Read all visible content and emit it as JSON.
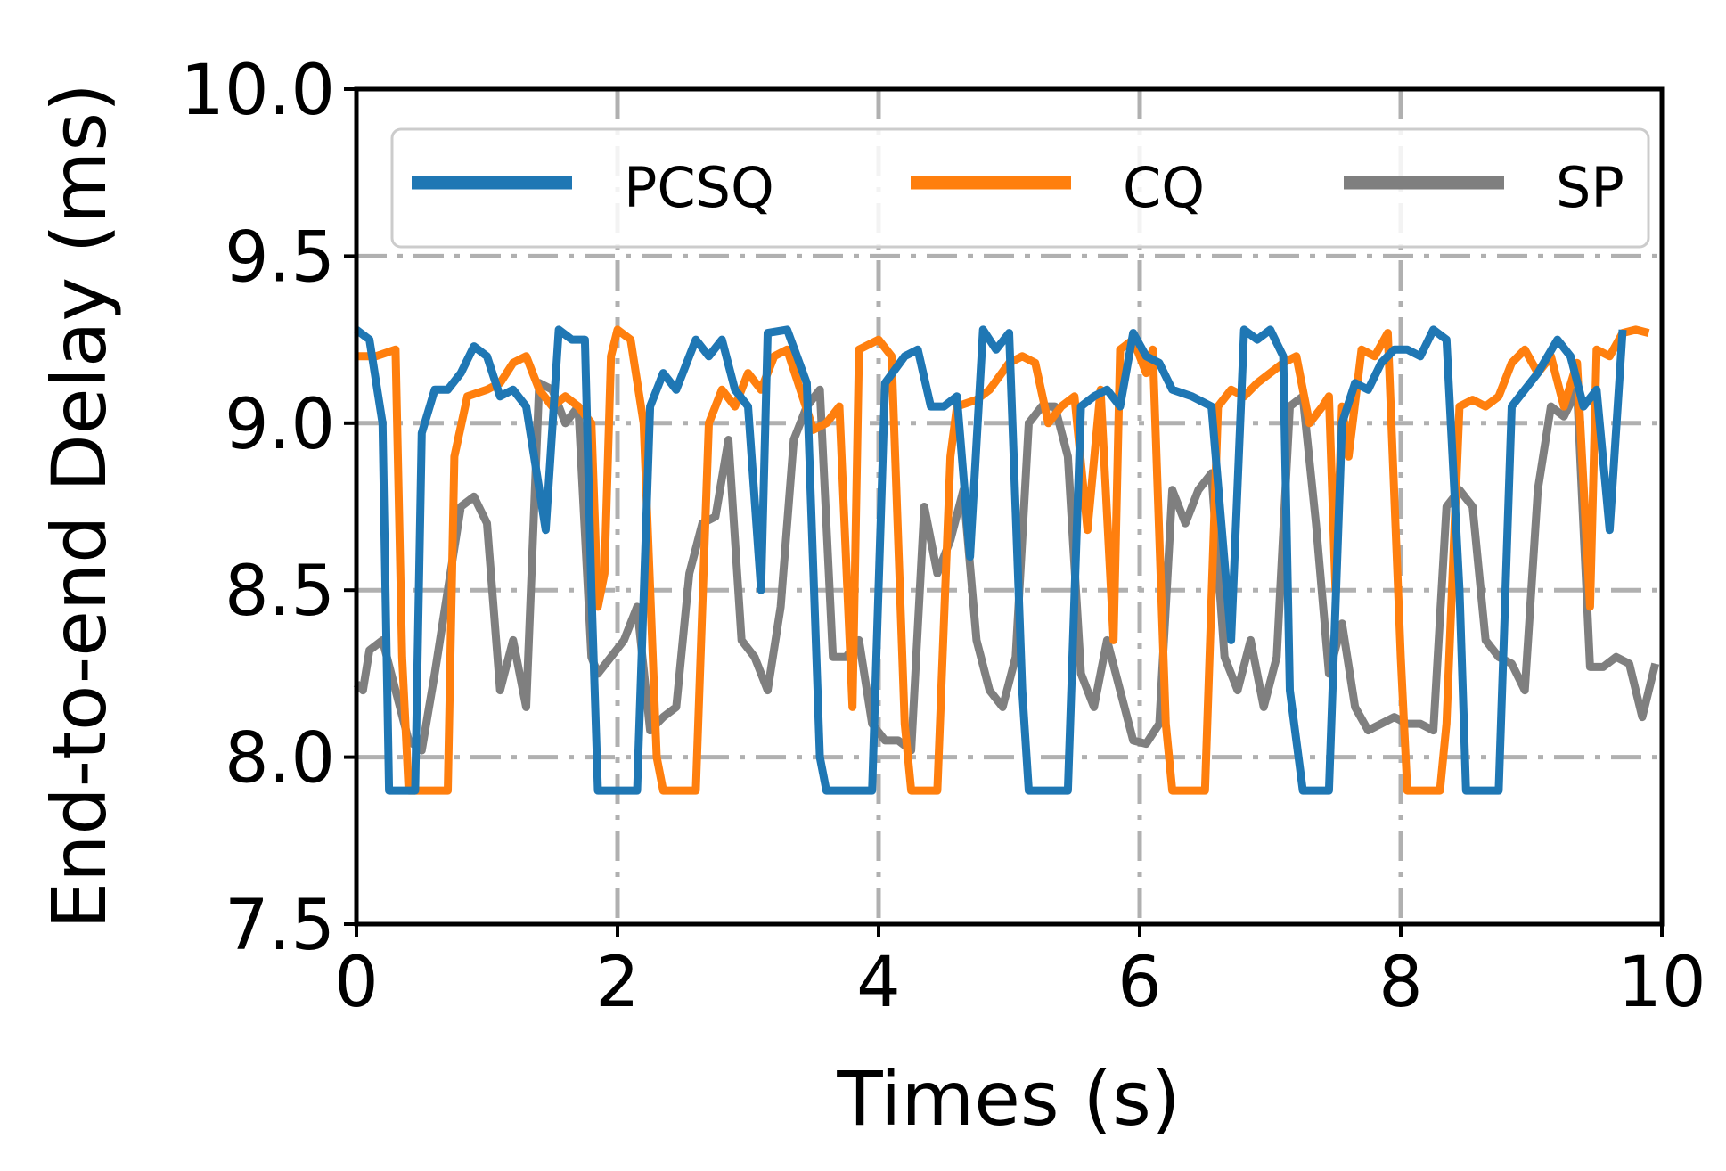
{
  "chart_data": {
    "type": "line",
    "title": "",
    "xlabel": "Times (s)",
    "ylabel": "End-to-end Delay (ms)",
    "xlim": [
      0,
      10
    ],
    "ylim": [
      7.5,
      10.0
    ],
    "xticks": [
      0,
      2,
      4,
      6,
      8,
      10
    ],
    "xtick_labels": [
      "0",
      "2",
      "4",
      "6",
      "8",
      "10"
    ],
    "yticks": [
      7.5,
      8.0,
      8.5,
      9.0,
      9.5,
      10.0
    ],
    "ytick_labels": [
      "7.5",
      "8.0",
      "8.5",
      "9.0",
      "9.5",
      "10.0"
    ],
    "grid": "on",
    "legend_position": "top",
    "series": [
      {
        "name": "PCSQ",
        "color": "#1f77b4",
        "points": [
          [
            0,
            9.28
          ],
          [
            0.1,
            9.25
          ],
          [
            0.2,
            9.0
          ],
          [
            0.25,
            7.9
          ],
          [
            0.45,
            7.9
          ],
          [
            0.5,
            8.97
          ],
          [
            0.6,
            9.1
          ],
          [
            0.7,
            9.1
          ],
          [
            0.8,
            9.15
          ],
          [
            0.9,
            9.23
          ],
          [
            1.0,
            9.2
          ],
          [
            1.1,
            9.08
          ],
          [
            1.2,
            9.1
          ],
          [
            1.3,
            9.05
          ],
          [
            1.45,
            8.68
          ],
          [
            1.55,
            9.28
          ],
          [
            1.65,
            9.25
          ],
          [
            1.75,
            9.25
          ],
          [
            1.8,
            8.5
          ],
          [
            1.85,
            7.9
          ],
          [
            2.15,
            7.9
          ],
          [
            2.25,
            9.05
          ],
          [
            2.35,
            9.15
          ],
          [
            2.45,
            9.1
          ],
          [
            2.6,
            9.25
          ],
          [
            2.7,
            9.2
          ],
          [
            2.8,
            9.25
          ],
          [
            2.9,
            9.1
          ],
          [
            3.0,
            9.05
          ],
          [
            3.1,
            8.5
          ],
          [
            3.15,
            9.27
          ],
          [
            3.3,
            9.28
          ],
          [
            3.45,
            9.12
          ],
          [
            3.55,
            8.0
          ],
          [
            3.6,
            7.9
          ],
          [
            3.95,
            7.9
          ],
          [
            4.05,
            9.12
          ],
          [
            4.2,
            9.2
          ],
          [
            4.3,
            9.22
          ],
          [
            4.4,
            9.05
          ],
          [
            4.5,
            9.05
          ],
          [
            4.6,
            9.08
          ],
          [
            4.7,
            8.6
          ],
          [
            4.8,
            9.28
          ],
          [
            4.9,
            9.22
          ],
          [
            5.0,
            9.27
          ],
          [
            5.1,
            8.2
          ],
          [
            5.15,
            7.9
          ],
          [
            5.45,
            7.9
          ],
          [
            5.55,
            9.05
          ],
          [
            5.65,
            9.08
          ],
          [
            5.75,
            9.1
          ],
          [
            5.85,
            9.05
          ],
          [
            5.95,
            9.27
          ],
          [
            6.05,
            9.2
          ],
          [
            6.15,
            9.18
          ],
          [
            6.25,
            9.1
          ],
          [
            6.4,
            9.08
          ],
          [
            6.55,
            9.05
          ],
          [
            6.7,
            8.35
          ],
          [
            6.8,
            9.28
          ],
          [
            6.9,
            9.25
          ],
          [
            7.0,
            9.28
          ],
          [
            7.1,
            9.2
          ],
          [
            7.15,
            8.2
          ],
          [
            7.25,
            7.9
          ],
          [
            7.45,
            7.9
          ],
          [
            7.55,
            9.0
          ],
          [
            7.65,
            9.12
          ],
          [
            7.75,
            9.1
          ],
          [
            7.85,
            9.18
          ],
          [
            7.95,
            9.22
          ],
          [
            8.05,
            9.22
          ],
          [
            8.15,
            9.2
          ],
          [
            8.25,
            9.28
          ],
          [
            8.35,
            9.25
          ],
          [
            8.45,
            8.5
          ],
          [
            8.5,
            7.9
          ],
          [
            8.75,
            7.9
          ],
          [
            8.85,
            9.05
          ],
          [
            8.95,
            9.1
          ],
          [
            9.05,
            9.15
          ],
          [
            9.2,
            9.25
          ],
          [
            9.3,
            9.2
          ],
          [
            9.4,
            9.05
          ],
          [
            9.5,
            9.1
          ],
          [
            9.6,
            8.68
          ],
          [
            9.7,
            9.28
          ]
        ]
      },
      {
        "name": "CQ",
        "color": "#ff7f0e",
        "points": [
          [
            0,
            9.2
          ],
          [
            0.15,
            9.2
          ],
          [
            0.3,
            9.22
          ],
          [
            0.35,
            8.3
          ],
          [
            0.4,
            7.9
          ],
          [
            0.7,
            7.9
          ],
          [
            0.75,
            8.9
          ],
          [
            0.85,
            9.08
          ],
          [
            1.0,
            9.1
          ],
          [
            1.1,
            9.12
          ],
          [
            1.2,
            9.18
          ],
          [
            1.3,
            9.2
          ],
          [
            1.4,
            9.1
          ],
          [
            1.5,
            9.05
          ],
          [
            1.6,
            9.08
          ],
          [
            1.7,
            9.05
          ],
          [
            1.8,
            9.0
          ],
          [
            1.85,
            8.45
          ],
          [
            1.9,
            8.55
          ],
          [
            1.95,
            9.2
          ],
          [
            2.0,
            9.28
          ],
          [
            2.1,
            9.25
          ],
          [
            2.2,
            9.0
          ],
          [
            2.3,
            8.0
          ],
          [
            2.35,
            7.9
          ],
          [
            2.6,
            7.9
          ],
          [
            2.7,
            9.0
          ],
          [
            2.8,
            9.1
          ],
          [
            2.9,
            9.05
          ],
          [
            3.0,
            9.15
          ],
          [
            3.1,
            9.1
          ],
          [
            3.2,
            9.2
          ],
          [
            3.3,
            9.22
          ],
          [
            3.4,
            9.1
          ],
          [
            3.5,
            8.98
          ],
          [
            3.6,
            9.0
          ],
          [
            3.7,
            9.05
          ],
          [
            3.8,
            8.15
          ],
          [
            3.85,
            9.22
          ],
          [
            4.0,
            9.25
          ],
          [
            4.1,
            9.2
          ],
          [
            4.2,
            8.1
          ],
          [
            4.25,
            7.9
          ],
          [
            4.45,
            7.9
          ],
          [
            4.55,
            8.9
          ],
          [
            4.6,
            9.05
          ],
          [
            4.75,
            9.07
          ],
          [
            4.85,
            9.1
          ],
          [
            5.0,
            9.18
          ],
          [
            5.1,
            9.2
          ],
          [
            5.2,
            9.18
          ],
          [
            5.3,
            9.0
          ],
          [
            5.4,
            9.05
          ],
          [
            5.5,
            9.08
          ],
          [
            5.6,
            8.68
          ],
          [
            5.7,
            9.1
          ],
          [
            5.8,
            8.35
          ],
          [
            5.85,
            9.22
          ],
          [
            5.95,
            9.25
          ],
          [
            6.05,
            9.15
          ],
          [
            6.1,
            9.22
          ],
          [
            6.2,
            8.1
          ],
          [
            6.25,
            7.9
          ],
          [
            6.5,
            7.9
          ],
          [
            6.6,
            9.05
          ],
          [
            6.7,
            9.1
          ],
          [
            6.8,
            9.08
          ],
          [
            6.9,
            9.12
          ],
          [
            7.0,
            9.15
          ],
          [
            7.1,
            9.18
          ],
          [
            7.2,
            9.2
          ],
          [
            7.3,
            9.0
          ],
          [
            7.4,
            9.05
          ],
          [
            7.45,
            9.08
          ],
          [
            7.5,
            8.5
          ],
          [
            7.55,
            9.05
          ],
          [
            7.6,
            8.9
          ],
          [
            7.7,
            9.22
          ],
          [
            7.8,
            9.2
          ],
          [
            7.9,
            9.27
          ],
          [
            8.0,
            8.3
          ],
          [
            8.05,
            7.9
          ],
          [
            8.3,
            7.9
          ],
          [
            8.35,
            8.1
          ],
          [
            8.45,
            9.05
          ],
          [
            8.55,
            9.07
          ],
          [
            8.65,
            9.05
          ],
          [
            8.75,
            9.08
          ],
          [
            8.85,
            9.18
          ],
          [
            8.95,
            9.22
          ],
          [
            9.05,
            9.15
          ],
          [
            9.15,
            9.2
          ],
          [
            9.25,
            9.05
          ],
          [
            9.35,
            9.18
          ],
          [
            9.45,
            8.45
          ],
          [
            9.5,
            9.22
          ],
          [
            9.6,
            9.2
          ],
          [
            9.7,
            9.27
          ],
          [
            9.8,
            9.28
          ],
          [
            9.9,
            9.27
          ]
        ]
      },
      {
        "name": "SP",
        "color": "#7f7f7f",
        "points": [
          [
            0,
            8.22
          ],
          [
            0.05,
            8.2
          ],
          [
            0.1,
            8.32
          ],
          [
            0.2,
            8.35
          ],
          [
            0.3,
            8.2
          ],
          [
            0.4,
            8.05
          ],
          [
            0.5,
            8.02
          ],
          [
            0.6,
            8.25
          ],
          [
            0.7,
            8.5
          ],
          [
            0.8,
            8.75
          ],
          [
            0.9,
            8.78
          ],
          [
            1.0,
            8.7
          ],
          [
            1.1,
            8.2
          ],
          [
            1.2,
            8.35
          ],
          [
            1.3,
            8.15
          ],
          [
            1.4,
            9.12
          ],
          [
            1.5,
            9.1
          ],
          [
            1.6,
            9.0
          ],
          [
            1.7,
            9.05
          ],
          [
            1.8,
            8.3
          ],
          [
            1.85,
            8.25
          ],
          [
            1.95,
            8.3
          ],
          [
            2.05,
            8.35
          ],
          [
            2.15,
            8.45
          ],
          [
            2.25,
            8.08
          ],
          [
            2.35,
            8.12
          ],
          [
            2.45,
            8.15
          ],
          [
            2.55,
            8.55
          ],
          [
            2.65,
            8.7
          ],
          [
            2.75,
            8.72
          ],
          [
            2.85,
            8.95
          ],
          [
            2.95,
            8.35
          ],
          [
            3.05,
            8.3
          ],
          [
            3.15,
            8.2
          ],
          [
            3.25,
            8.45
          ],
          [
            3.35,
            8.95
          ],
          [
            3.45,
            9.05
          ],
          [
            3.55,
            9.1
          ],
          [
            3.65,
            8.3
          ],
          [
            3.75,
            8.3
          ],
          [
            3.85,
            8.35
          ],
          [
            3.95,
            8.1
          ],
          [
            4.05,
            8.05
          ],
          [
            4.15,
            8.05
          ],
          [
            4.25,
            8.02
          ],
          [
            4.35,
            8.75
          ],
          [
            4.45,
            8.55
          ],
          [
            4.55,
            8.65
          ],
          [
            4.65,
            8.8
          ],
          [
            4.75,
            8.35
          ],
          [
            4.85,
            8.2
          ],
          [
            4.95,
            8.15
          ],
          [
            5.05,
            8.3
          ],
          [
            5.15,
            9.0
          ],
          [
            5.25,
            9.05
          ],
          [
            5.35,
            9.05
          ],
          [
            5.45,
            8.9
          ],
          [
            5.55,
            8.25
          ],
          [
            5.65,
            8.15
          ],
          [
            5.75,
            8.35
          ],
          [
            5.85,
            8.2
          ],
          [
            5.95,
            8.05
          ],
          [
            6.05,
            8.04
          ],
          [
            6.15,
            8.1
          ],
          [
            6.25,
            8.8
          ],
          [
            6.35,
            8.7
          ],
          [
            6.45,
            8.8
          ],
          [
            6.55,
            8.85
          ],
          [
            6.65,
            8.3
          ],
          [
            6.75,
            8.2
          ],
          [
            6.85,
            8.35
          ],
          [
            6.95,
            8.15
          ],
          [
            7.05,
            8.3
          ],
          [
            7.15,
            9.05
          ],
          [
            7.25,
            9.08
          ],
          [
            7.35,
            8.7
          ],
          [
            7.45,
            8.25
          ],
          [
            7.55,
            8.4
          ],
          [
            7.65,
            8.15
          ],
          [
            7.75,
            8.08
          ],
          [
            7.85,
            8.1
          ],
          [
            7.95,
            8.12
          ],
          [
            8.05,
            8.1
          ],
          [
            8.15,
            8.1
          ],
          [
            8.25,
            8.08
          ],
          [
            8.35,
            8.75
          ],
          [
            8.45,
            8.8
          ],
          [
            8.55,
            8.75
          ],
          [
            8.65,
            8.35
          ],
          [
            8.75,
            8.3
          ],
          [
            8.85,
            8.28
          ],
          [
            8.95,
            8.2
          ],
          [
            9.05,
            8.8
          ],
          [
            9.15,
            9.05
          ],
          [
            9.25,
            9.02
          ],
          [
            9.35,
            9.1
          ],
          [
            9.45,
            8.27
          ],
          [
            9.55,
            8.27
          ],
          [
            9.65,
            8.3
          ],
          [
            9.75,
            8.28
          ],
          [
            9.85,
            8.12
          ],
          [
            9.95,
            8.28
          ]
        ]
      }
    ]
  }
}
